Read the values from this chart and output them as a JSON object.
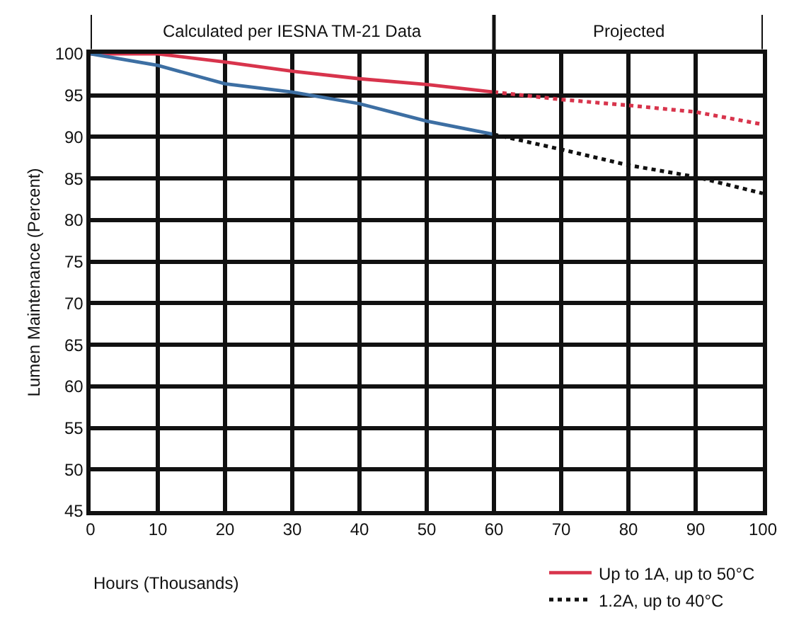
{
  "chart_data": {
    "type": "line",
    "xlabel": "Hours (Thousands)",
    "ylabel": "Lumen Maintenance (Percent)",
    "series": [
      {
        "name": "Up to 1A, up to 50°C",
        "color": "#d8344c",
        "line_style": "solid",
        "x": [
          0,
          10,
          20,
          30,
          40,
          50,
          60
        ],
        "values": [
          100,
          100,
          99.0,
          97.9,
          97.0,
          96.3,
          95.4
        ]
      },
      {
        "color": "#d8344c",
        "line_style": "dotted",
        "x": [
          60,
          70,
          80,
          90,
          100
        ],
        "values": [
          95.4,
          94.5,
          93.8,
          93.0,
          91.5
        ]
      },
      {
        "color": "#3d6fa3",
        "line_style": "solid",
        "x": [
          0,
          10,
          20,
          30,
          40,
          50,
          60
        ],
        "values": [
          100,
          98.6,
          96.4,
          95.4,
          94.0,
          91.9,
          90.3
        ]
      },
      {
        "name": "1.2A, up to 40°C",
        "color": "#111111",
        "line_style": "dotted",
        "x": [
          60,
          70,
          80,
          90,
          100
        ],
        "values": [
          90.3,
          88.5,
          86.6,
          85.2,
          83.2
        ]
      }
    ],
    "xlim": [
      0,
      100
    ],
    "xticks": [
      0,
      10,
      20,
      30,
      40,
      50,
      60,
      70,
      80,
      90,
      100
    ],
    "ylim": [
      45,
      100
    ],
    "yticks": [
      45,
      50,
      55,
      60,
      65,
      70,
      75,
      80,
      85,
      90,
      95,
      100
    ],
    "ref_lines": [
      {
        "axis": "x",
        "value": 60,
        "color": "#111111"
      }
    ],
    "annotations": [
      "Calculated per IESNA TM-21 Data",
      "Projected"
    ],
    "grid": true,
    "legend": "bottom right",
    "marker": "none"
  }
}
